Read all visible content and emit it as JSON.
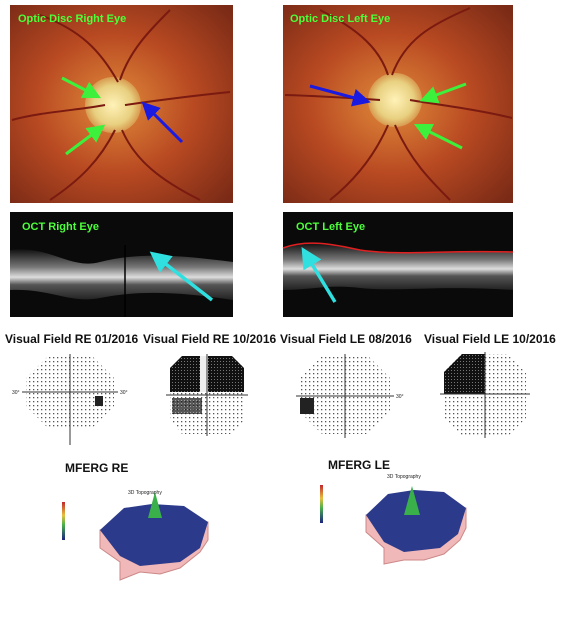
{
  "fundus": [
    {
      "title": "Optic Disc Right Eye"
    },
    {
      "title": "Optic Disc Left Eye"
    }
  ],
  "oct": [
    {
      "title": "OCT Right Eye"
    },
    {
      "title": "OCT Left Eye"
    }
  ],
  "visual_fields": [
    {
      "title": "Visual Field RE 01/2016",
      "left_label": "30°",
      "right_label": "30°"
    },
    {
      "title": "Visual Field RE 10/2016"
    },
    {
      "title": "Visual Field LE 08/2016",
      "right_label": "30°"
    },
    {
      "title": "Visual Field  LE 10/2016"
    }
  ],
  "mferg": [
    {
      "title": "MFERG RE",
      "plot_title": "3D Topography"
    },
    {
      "title": "MFERG LE",
      "plot_title": "3D Topography"
    }
  ]
}
